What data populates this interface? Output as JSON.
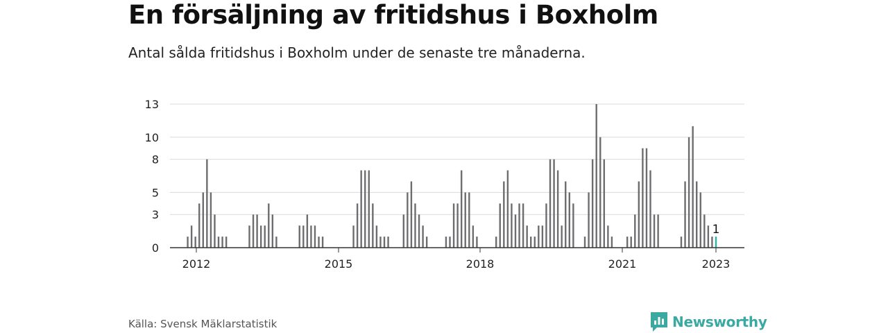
{
  "title": "En försäljning av fritidshus i Boxholm",
  "subtitle": "Antal sålda fritidshus i Boxholm under de senaste tre månaderna.",
  "source": "Källa: Svensk Mäklarstatistik",
  "logo": {
    "text": "Newsworthy",
    "icon": "newsworthy-logo-icon"
  },
  "colors": {
    "bar": "#6d6d70",
    "highlight": "#2bb3a7",
    "grid": "#d9d9d9",
    "axis": "#333333",
    "brand": "#3aa9a1"
  },
  "chart_data": {
    "type": "bar",
    "title": "En försäljning av fritidshus i Boxholm",
    "xlabel": "",
    "ylabel": "",
    "ylim": [
      0,
      13
    ],
    "yticks": [
      0,
      3,
      5,
      8,
      10,
      13
    ],
    "ytick_labels": [
      "0",
      "3",
      "5",
      "8",
      "10",
      "13"
    ],
    "xtick_labels": [
      "2012",
      "2015",
      "2018",
      "2021",
      "2023"
    ],
    "grid": true,
    "highlight_label": "1",
    "series": [
      {
        "values": [
          0,
          1,
          2,
          1,
          4,
          5,
          8,
          5,
          3,
          1,
          1,
          1,
          0,
          0,
          0,
          0,
          0,
          2,
          3,
          3,
          2,
          2,
          4,
          3,
          1,
          0,
          0,
          0,
          0,
          0,
          2,
          2,
          3,
          2,
          2,
          1,
          1,
          0,
          0,
          0,
          0,
          0,
          0,
          0,
          2,
          4,
          7,
          7,
          7,
          4,
          2,
          1,
          1,
          1,
          0,
          0,
          0,
          3,
          5,
          6,
          4,
          3,
          2,
          1,
          0,
          0,
          0,
          0,
          1,
          1,
          4,
          4,
          7,
          5,
          5,
          2,
          1,
          0,
          0,
          0,
          0,
          1,
          4,
          6,
          7,
          4,
          3,
          4,
          4,
          2,
          1,
          1,
          2,
          2,
          4,
          8,
          8,
          7,
          2,
          6,
          5,
          4,
          0,
          0,
          1,
          5,
          8,
          13,
          10,
          8,
          2,
          1,
          0,
          0,
          0,
          1,
          1,
          3,
          6,
          9,
          9,
          7,
          3,
          3,
          0,
          0,
          0,
          0,
          0,
          1,
          6,
          10,
          11,
          6,
          5,
          3,
          2,
          1,
          1
        ]
      }
    ]
  }
}
